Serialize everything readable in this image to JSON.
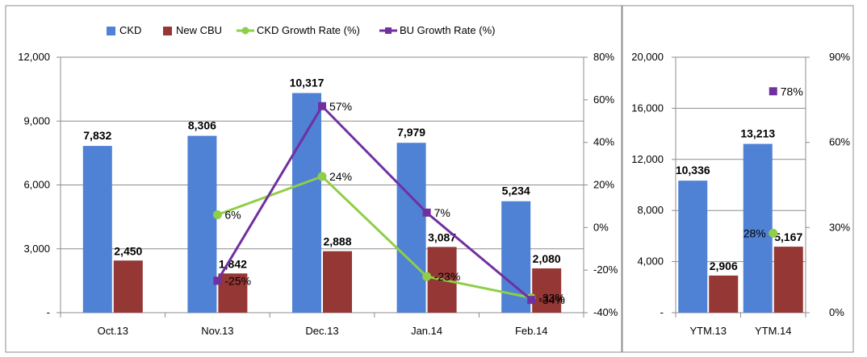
{
  "legend": {
    "items": [
      {
        "label": "CKD",
        "kind": "bar",
        "color": "#4f81d4"
      },
      {
        "label": "New CBU",
        "kind": "bar",
        "color": "#953735"
      },
      {
        "label": "CKD Growth Rate (%)",
        "kind": "line",
        "color": "#8fce48"
      },
      {
        "label": "BU Growth Rate (%)",
        "kind": "line",
        "color": "#7030a0"
      }
    ]
  },
  "chart_data": [
    {
      "type": "bar",
      "categories": [
        "Oct.13",
        "Nov.13",
        "Dec.13",
        "Jan.14",
        "Feb.14"
      ],
      "series": [
        {
          "name": "CKD",
          "values": [
            7832,
            8306,
            10317,
            7979,
            5234
          ],
          "labels": [
            "7,832",
            "8,306",
            "10,317",
            "7,979",
            "5,234"
          ],
          "color": "#4f81d4",
          "axis": "left"
        },
        {
          "name": "New CBU",
          "values": [
            2450,
            1842,
            2888,
            3087,
            2080
          ],
          "labels": [
            "2,450",
            "1,842",
            "2,888",
            "3,087",
            "2,080"
          ],
          "color": "#953735",
          "axis": "left"
        },
        {
          "name": "CKD Growth Rate (%)",
          "type": "line",
          "values": [
            null,
            6,
            24,
            -23,
            -33
          ],
          "labels": [
            "",
            "6%",
            "24%",
            "-23%",
            "-33%"
          ],
          "color": "#8fce48",
          "axis": "right"
        },
        {
          "name": "BU Growth Rate (%)",
          "type": "line",
          "values": [
            null,
            -25,
            57,
            7,
            -34
          ],
          "labels": [
            "",
            "-25%",
            "57%",
            "7%",
            "-34%"
          ],
          "color": "#7030a0",
          "axis": "right"
        }
      ],
      "ylim": [
        0,
        12000
      ],
      "yticks": [
        "-",
        "3,000",
        "6,000",
        "9,000",
        "12,000"
      ],
      "y2lim": [
        -40,
        80
      ],
      "y2ticks": [
        "-40%",
        "-20%",
        "0%",
        "20%",
        "40%",
        "60%",
        "80%"
      ],
      "grid": true,
      "legend": "top"
    },
    {
      "type": "bar",
      "categories": [
        "YTM.13",
        "YTM.14"
      ],
      "series": [
        {
          "name": "CKD",
          "values": [
            10336,
            13213
          ],
          "labels": [
            "10,336",
            "13,213"
          ],
          "color": "#4f81d4",
          "axis": "left"
        },
        {
          "name": "New CBU",
          "values": [
            2906,
            5167
          ],
          "labels": [
            "2,906",
            "5,167"
          ],
          "color": "#953735",
          "axis": "left"
        },
        {
          "name": "CKD Growth Rate (%)",
          "type": "line",
          "values": [
            null,
            28
          ],
          "labels": [
            "",
            "28%"
          ],
          "color": "#8fce48",
          "axis": "right"
        },
        {
          "name": "BU Growth Rate (%)",
          "type": "line",
          "values": [
            null,
            78
          ],
          "labels": [
            "",
            "78%"
          ],
          "color": "#7030a0",
          "axis": "right"
        }
      ],
      "ylim": [
        0,
        20000
      ],
      "yticks": [
        "-",
        "4,000",
        "8,000",
        "12,000",
        "16,000",
        "20,000"
      ],
      "y2lim": [
        0,
        90
      ],
      "y2ticks": [
        "0%",
        "30%",
        "60%",
        "90%"
      ],
      "grid": true
    }
  ]
}
